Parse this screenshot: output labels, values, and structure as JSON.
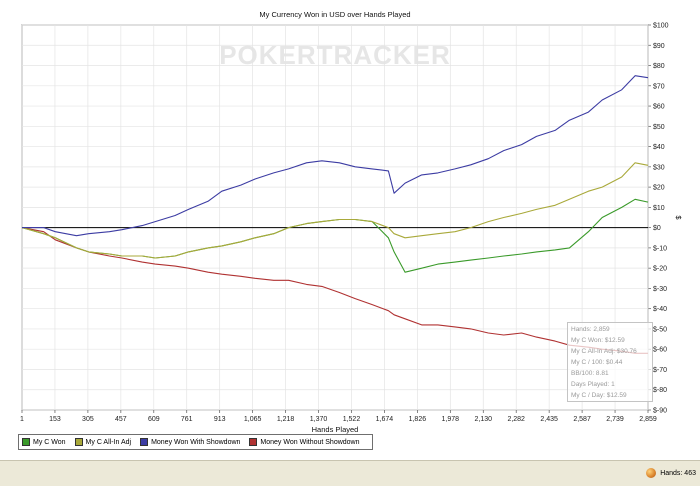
{
  "chart_data": {
    "type": "line",
    "title": "My Currency Won in USD over Hands Played",
    "xlabel": "Hands Played",
    "ylabel": "$",
    "xlim": [
      1,
      2859
    ],
    "ylim": [
      -90,
      100
    ],
    "x_ticks": [
      "1",
      "153",
      "305",
      "457",
      "609",
      "761",
      "913",
      "1,065",
      "1,218",
      "1,370",
      "1,522",
      "1,674",
      "1,826",
      "1,978",
      "2,130",
      "2,282",
      "2,435",
      "2,587",
      "2,739",
      "2,859"
    ],
    "y_ticks": [
      "$100",
      "$90",
      "$80",
      "$70",
      "$60",
      "$50",
      "$40",
      "$30",
      "$20",
      "$10",
      "$0",
      "$-10",
      "$-20",
      "$-30",
      "$-40",
      "$-50",
      "$-60",
      "$-70",
      "$-80",
      "$-90"
    ],
    "grid": true,
    "legend_position": "bottom-left",
    "series": [
      {
        "name": "My C Won",
        "color": "#3a9a2a",
        "x": [
          1,
          100,
          153,
          250,
          305,
          400,
          457,
          550,
          609,
          700,
          761,
          850,
          913,
          1000,
          1065,
          1150,
          1218,
          1300,
          1370,
          1450,
          1522,
          1600,
          1674,
          1700,
          1750,
          1826,
          1900,
          1978,
          2050,
          2130,
          2200,
          2282,
          2350,
          2435,
          2500,
          2587,
          2650,
          2739,
          2800,
          2859
        ],
        "values": [
          0,
          -3,
          -5,
          -10,
          -12,
          -13,
          -14,
          -14,
          -15,
          -14,
          -12,
          -10,
          -9,
          -7,
          -5,
          -3,
          0,
          2,
          3,
          4,
          4,
          3,
          -5,
          -12,
          -22,
          -20,
          -18,
          -17,
          -16,
          -15,
          -14,
          -13,
          -12,
          -11,
          -10,
          -2,
          5,
          10,
          14,
          12.59
        ]
      },
      {
        "name": "My C All-In Adj",
        "color": "#a9a93a",
        "x": [
          1,
          100,
          153,
          250,
          305,
          400,
          457,
          550,
          609,
          700,
          761,
          850,
          913,
          1000,
          1065,
          1150,
          1218,
          1300,
          1370,
          1450,
          1522,
          1600,
          1674,
          1700,
          1750,
          1826,
          1900,
          1978,
          2050,
          2130,
          2200,
          2282,
          2350,
          2435,
          2500,
          2587,
          2650,
          2739,
          2800,
          2859
        ],
        "values": [
          0,
          -3,
          -5,
          -10,
          -12,
          -13,
          -14,
          -14,
          -15,
          -14,
          -12,
          -10,
          -9,
          -7,
          -5,
          -3,
          0,
          2,
          3,
          4,
          4,
          3,
          0,
          -3,
          -5,
          -4,
          -3,
          -2,
          0,
          3,
          5,
          7,
          9,
          11,
          14,
          18,
          20,
          25,
          32,
          30.76
        ]
      },
      {
        "name": "Money Won With Showdown",
        "color": "#3c3ca3",
        "x": [
          1,
          100,
          153,
          250,
          305,
          400,
          457,
          550,
          609,
          700,
          761,
          850,
          913,
          1000,
          1065,
          1150,
          1218,
          1300,
          1370,
          1450,
          1522,
          1600,
          1674,
          1700,
          1750,
          1826,
          1900,
          1978,
          2050,
          2130,
          2200,
          2282,
          2350,
          2435,
          2500,
          2587,
          2650,
          2739,
          2800,
          2859
        ],
        "values": [
          0,
          0,
          -2,
          -4,
          -3,
          -2,
          -1,
          1,
          3,
          6,
          9,
          13,
          18,
          21,
          24,
          27,
          29,
          32,
          33,
          32,
          30,
          29,
          28,
          17,
          22,
          26,
          27,
          29,
          31,
          34,
          38,
          41,
          45,
          48,
          53,
          57,
          63,
          68,
          75,
          74
        ]
      },
      {
        "name": "Money Won Without Showdown",
        "color": "#b03232",
        "x": [
          1,
          100,
          153,
          250,
          305,
          400,
          457,
          550,
          609,
          700,
          761,
          850,
          913,
          1000,
          1065,
          1150,
          1218,
          1300,
          1370,
          1450,
          1522,
          1600,
          1674,
          1700,
          1750,
          1826,
          1900,
          1978,
          2050,
          2130,
          2200,
          2282,
          2350,
          2435,
          2500,
          2587,
          2650,
          2739,
          2800,
          2859
        ],
        "values": [
          0,
          -2,
          -6,
          -10,
          -12,
          -14,
          -15,
          -17,
          -18,
          -19,
          -20,
          -22,
          -23,
          -24,
          -25,
          -26,
          -26,
          -28,
          -29,
          -32,
          -35,
          -38,
          -41,
          -43,
          -45,
          -48,
          -48,
          -49,
          -50,
          -52,
          -53,
          -52,
          -54,
          -56,
          -58,
          -59,
          -60,
          -61,
          -62,
          -62
        ]
      }
    ]
  },
  "watermark": "POKERTRACKER",
  "info_box": {
    "lines": [
      "Hands: 2,859",
      "My C Won: $12.59",
      "My C All-In Adj: $30.76",
      "My C / 100: $0.44",
      "BB/100: 8.81",
      "Days Played: 1",
      "My C / Day: $12.59"
    ]
  },
  "status": {
    "hands_label": "Hands: 463"
  }
}
